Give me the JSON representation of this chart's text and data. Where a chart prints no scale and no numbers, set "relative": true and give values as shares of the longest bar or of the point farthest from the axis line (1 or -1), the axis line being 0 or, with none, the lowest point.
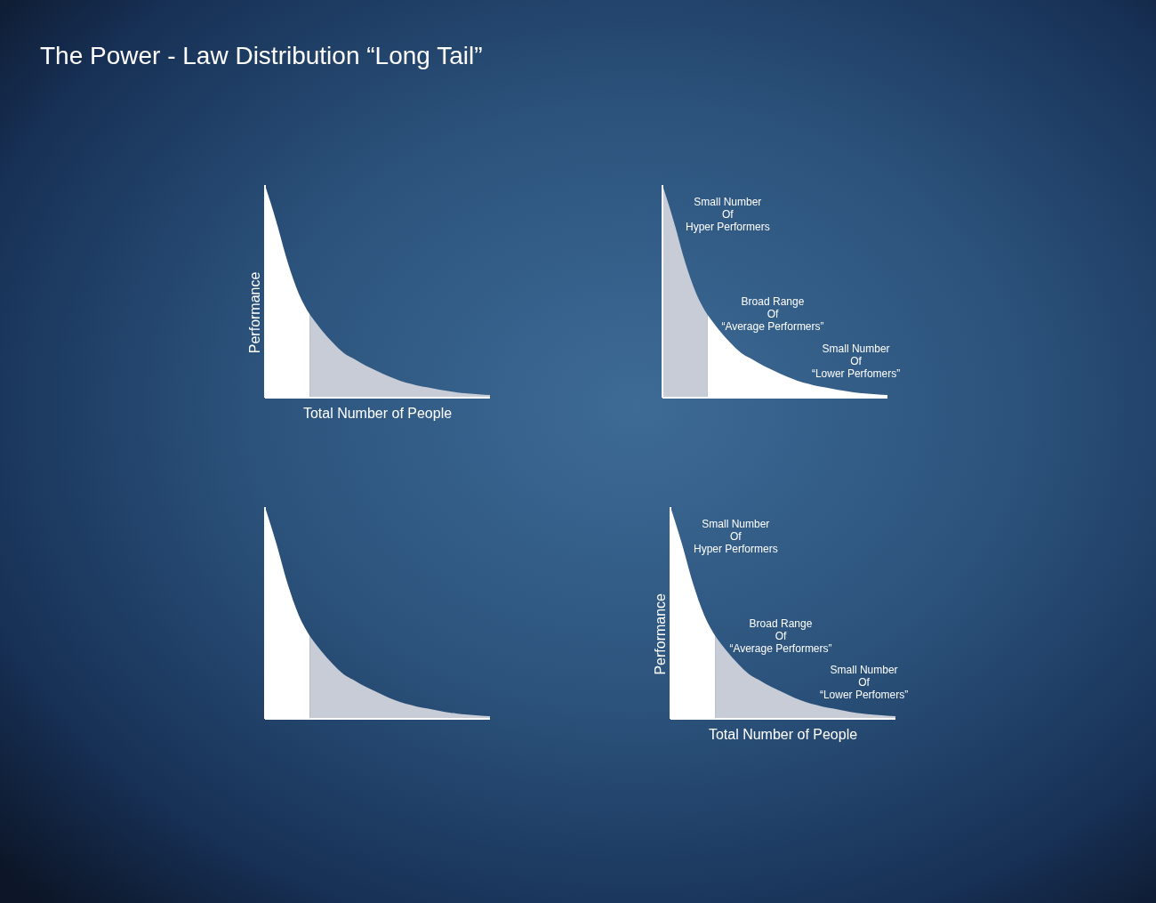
{
  "chart_data": [
    {
      "type": "area",
      "relative": true,
      "title": "The Power - Law Distribution “Long Tail”",
      "xlabel": "Total Number of People",
      "ylabel": "Performance",
      "categories": [
        null,
        null,
        null,
        null,
        null,
        null,
        null,
        null,
        null,
        null,
        null,
        null,
        null,
        null,
        null,
        null,
        null,
        null,
        null,
        null,
        null
      ],
      "series": [
        {
          "color": "#ffffff",
          "values": [
            1,
            0.83,
            0.64,
            0.49,
            0.39,
            null,
            null,
            null,
            null,
            null,
            null,
            null,
            null,
            null,
            null,
            null,
            null,
            null,
            null,
            null,
            null
          ]
        },
        {
          "color": "#c7ccd7",
          "values": [
            null,
            null,
            null,
            null,
            0.39,
            0.32,
            0.26,
            0.21,
            0.18,
            0.15,
            0.125,
            0.1,
            0.08,
            0.065,
            0.052,
            0.043,
            0.033,
            0.025,
            0.02,
            0.016,
            0.013
          ]
        }
      ]
    },
    {
      "type": "area",
      "relative": true,
      "annotations": [
        "Small Number\nOf\nHyper Performers",
        "Broad Range\nOf\n“Average Performers”",
        "Small Number\nOf\n“Lower Perfomers”"
      ],
      "categories": [
        null,
        null,
        null,
        null,
        null,
        null,
        null,
        null,
        null,
        null,
        null,
        null,
        null,
        null,
        null,
        null,
        null,
        null,
        null,
        null,
        null
      ],
      "series": [
        {
          "color": "#c7ccd7",
          "values": [
            1,
            0.83,
            0.64,
            0.49,
            0.39,
            null,
            null,
            null,
            null,
            null,
            null,
            null,
            null,
            null,
            null,
            null,
            null,
            null,
            null,
            null,
            null
          ]
        },
        {
          "color": "#ffffff",
          "values": [
            null,
            null,
            null,
            null,
            0.39,
            0.32,
            0.26,
            0.21,
            0.18,
            0.15,
            0.125,
            0.1,
            0.08,
            0.065,
            0.052,
            0.043,
            0.033,
            0.025,
            0.02,
            0.016,
            0.013
          ]
        }
      ]
    },
    {
      "type": "area",
      "relative": true,
      "categories": [
        null,
        null,
        null,
        null,
        null,
        null,
        null,
        null,
        null,
        null,
        null,
        null,
        null,
        null,
        null,
        null,
        null,
        null,
        null,
        null,
        null
      ],
      "series": [
        {
          "color": "#ffffff",
          "values": [
            1,
            0.83,
            0.64,
            0.49,
            0.39,
            null,
            null,
            null,
            null,
            null,
            null,
            null,
            null,
            null,
            null,
            null,
            null,
            null,
            null,
            null,
            null
          ]
        },
        {
          "color": "#c7ccd7",
          "values": [
            null,
            null,
            null,
            null,
            0.39,
            0.32,
            0.26,
            0.21,
            0.18,
            0.15,
            0.125,
            0.1,
            0.08,
            0.065,
            0.052,
            0.043,
            0.033,
            0.025,
            0.02,
            0.016,
            0.013
          ]
        }
      ]
    },
    {
      "type": "area",
      "relative": true,
      "xlabel": "Total Number of People",
      "ylabel": "Performance",
      "annotations": [
        "Small Number\nOf\nHyper Performers",
        "Broad Range\nOf\n“Average Performers”",
        "Small Number\nOf\n“Lower Perfomers”"
      ],
      "categories": [
        null,
        null,
        null,
        null,
        null,
        null,
        null,
        null,
        null,
        null,
        null,
        null,
        null,
        null,
        null,
        null,
        null,
        null,
        null,
        null,
        null
      ],
      "series": [
        {
          "color": "#ffffff",
          "values": [
            1,
            0.83,
            0.64,
            0.49,
            0.39,
            null,
            null,
            null,
            null,
            null,
            null,
            null,
            null,
            null,
            null,
            null,
            null,
            null,
            null,
            null,
            null
          ]
        },
        {
          "color": "#c7ccd7",
          "values": [
            null,
            null,
            null,
            null,
            0.39,
            0.32,
            0.26,
            0.21,
            0.18,
            0.15,
            0.125,
            0.1,
            0.08,
            0.065,
            0.052,
            0.043,
            0.033,
            0.025,
            0.02,
            0.016,
            0.013
          ]
        }
      ]
    }
  ]
}
